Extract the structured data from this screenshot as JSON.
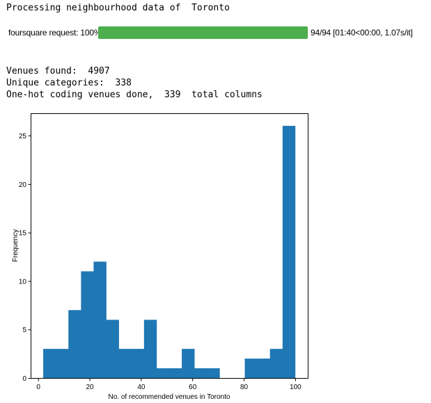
{
  "output": {
    "heading": "Processing neighbourhood data of  Toronto",
    "venues_found": "Venues found:  4907",
    "unique_categories": "Unique categories:  338",
    "one_hot": "One-hot coding venues done,  339  total columns"
  },
  "progress": {
    "label": "foursquare request: 100%",
    "fraction": 1.0,
    "stats": "94/94 [01:40<00:00, 1.07s/it]",
    "bar_color": "#4cae4c"
  },
  "chart_data": {
    "type": "bar",
    "title": "",
    "xlabel": "No. of recommended venues in Toronto",
    "ylabel": "Frequency",
    "xlim": [
      -2.9,
      104.9
    ],
    "ylim": [
      0,
      27.3
    ],
    "bar_color": "#1f77b4",
    "grid": false,
    "x_ticks": [
      "0",
      "20",
      "40",
      "60",
      "80",
      "100"
    ],
    "y_ticks": [
      "0",
      "5",
      "10",
      "15",
      "20",
      "25"
    ],
    "bin_edges": [
      2,
      6.9,
      11.8,
      16.7,
      21.6,
      26.5,
      31.4,
      36.3,
      41.2,
      46.1,
      51,
      55.9,
      60.8,
      65.7,
      70.6,
      75.5,
      80.4,
      85.3,
      90.2,
      95.1,
      100
    ],
    "values": [
      3,
      3,
      7,
      11,
      12,
      6,
      3,
      3,
      6,
      1,
      1,
      3,
      1,
      1,
      0,
      0,
      2,
      2,
      3,
      26
    ]
  }
}
